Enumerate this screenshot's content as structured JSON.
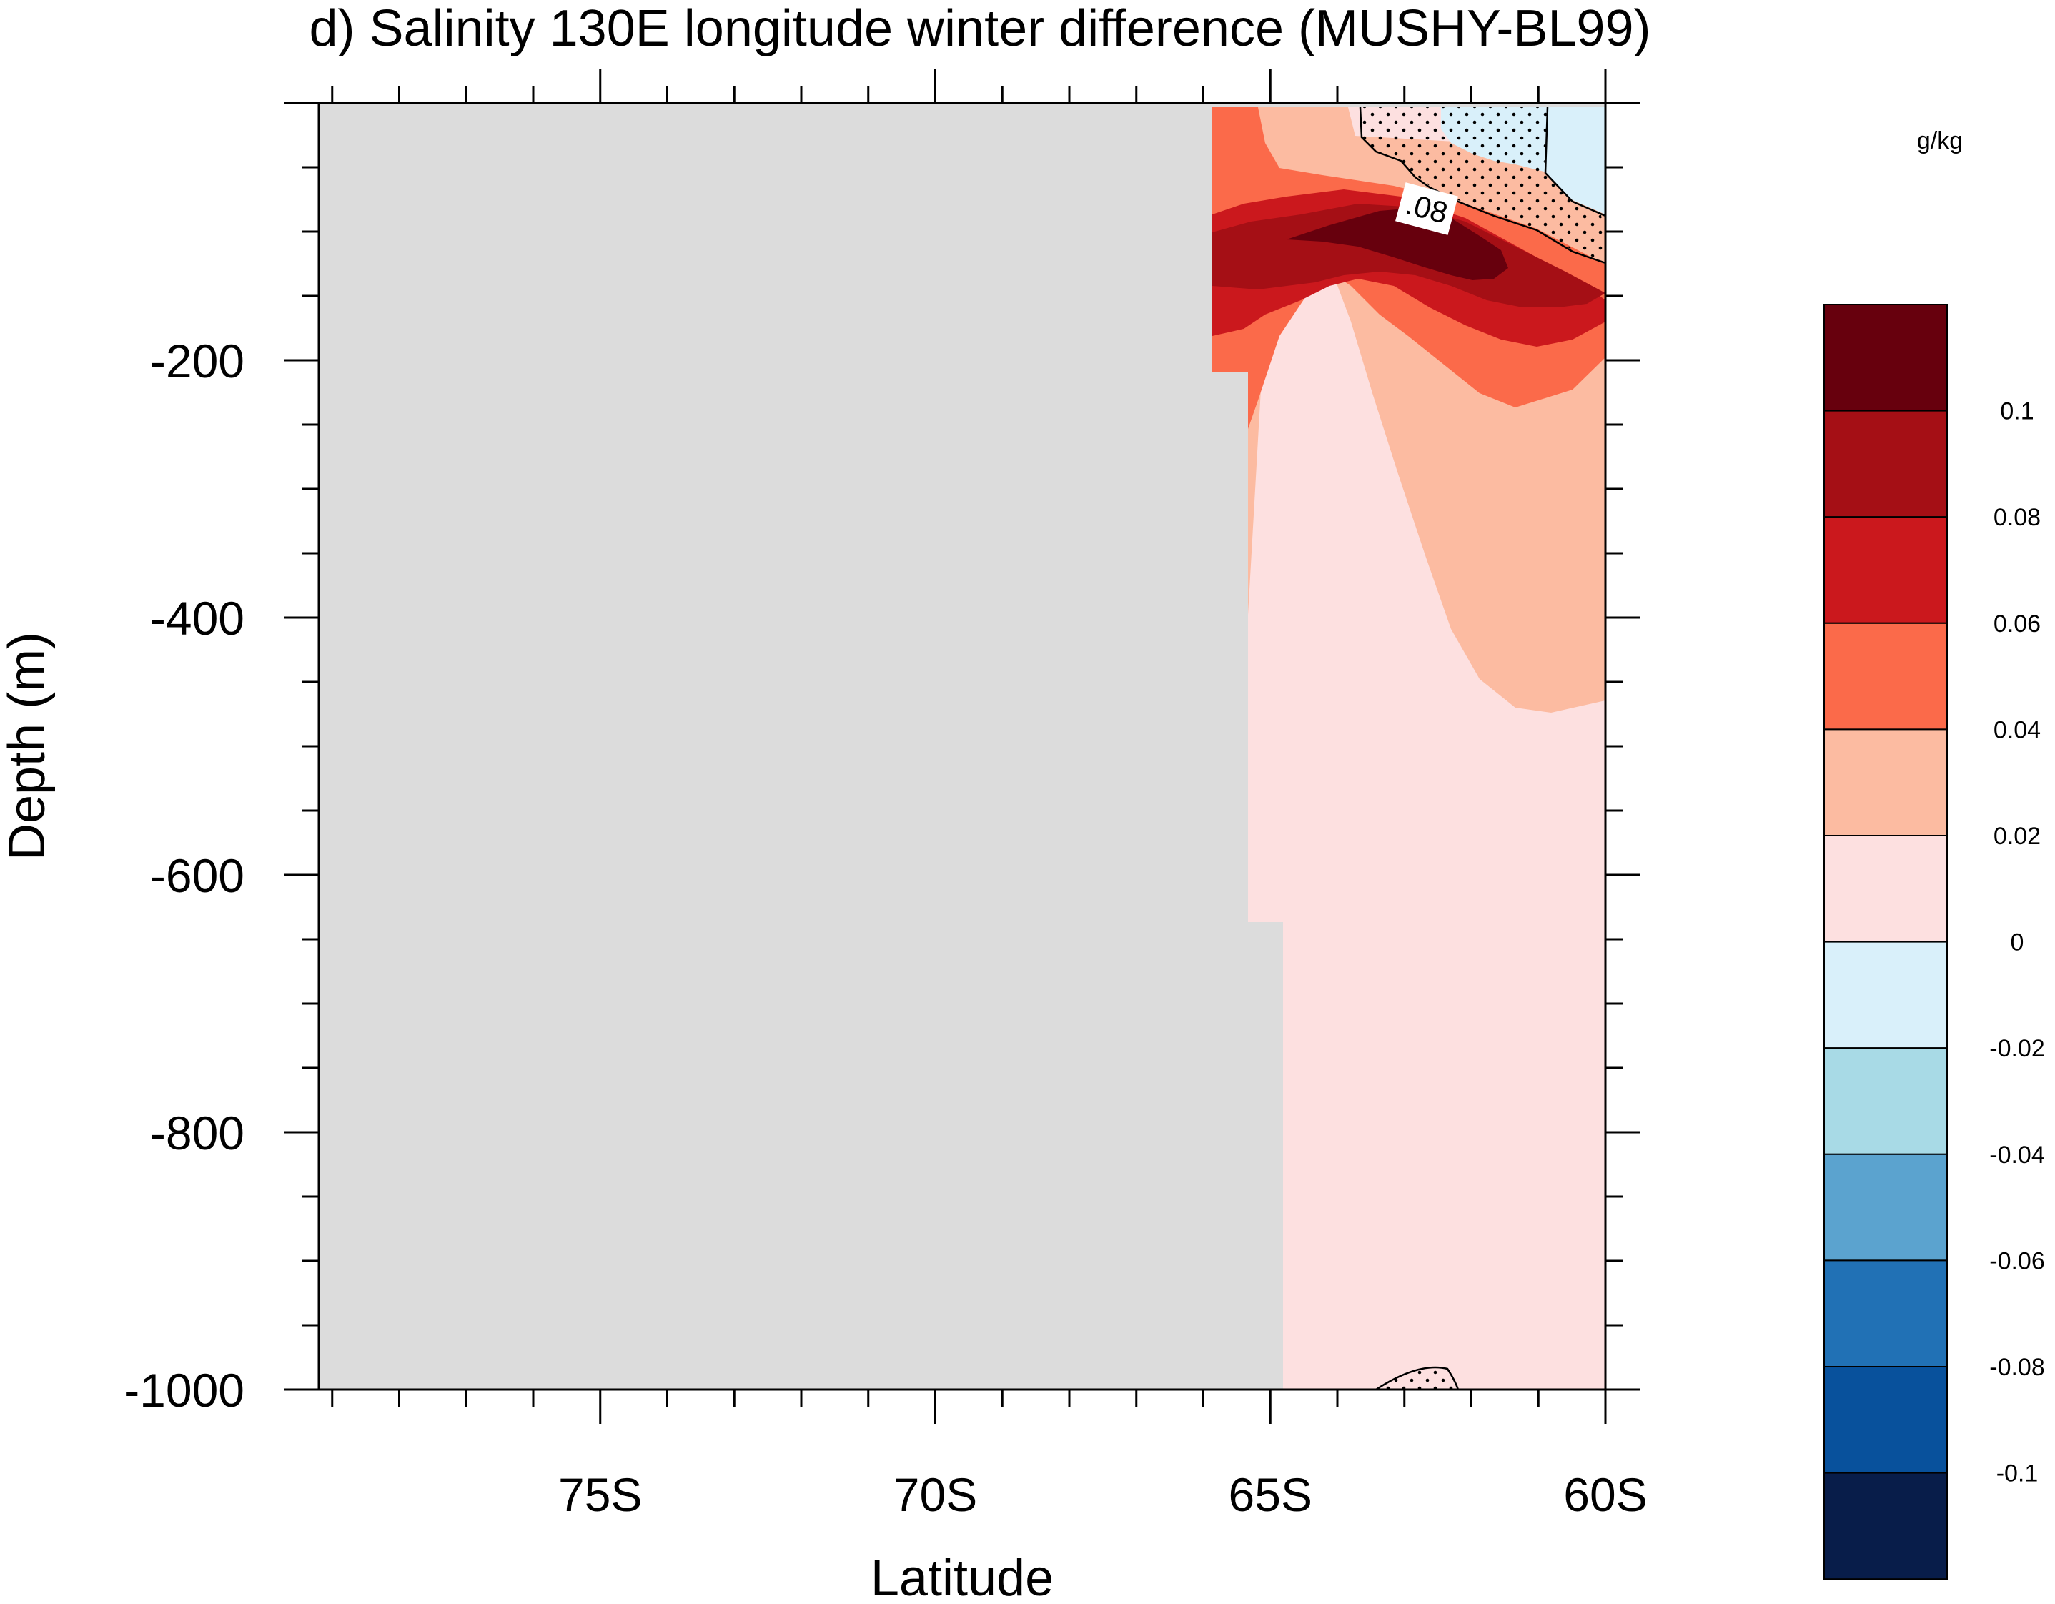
{
  "chart_data": {
    "type": "contour",
    "title": "d) Salinity 130E longitude winter difference (MUSHY-BL99)",
    "xlabel": "Latitude",
    "ylabel": "Depth (m)",
    "units": "g/kg",
    "x_axis": {
      "range_deg_south": [
        79.2,
        60
      ],
      "major_ticks": [
        75,
        70,
        65,
        60
      ],
      "tick_labels": [
        "75S",
        "70S",
        "65S",
        "60S"
      ]
    },
    "y_axis": {
      "range": [
        -1000,
        0
      ],
      "major_ticks": [
        -200,
        -400,
        -600,
        -800,
        -1000
      ],
      "tick_labels": [
        "-200",
        "-400",
        "-600",
        "-800",
        "-1000"
      ]
    },
    "contour_label": ".08",
    "stippling": "dots mark regions near the surface at 60-63S and a small patch near 62.5S, -1000 m",
    "colorbar": {
      "levels": [
        0.1,
        0.08,
        0.06,
        0.04,
        0.02,
        0,
        -0.02,
        -0.04,
        -0.06,
        -0.08,
        -0.1
      ],
      "labels": [
        "0.1",
        "0.08",
        "0.06",
        "0.04",
        "0.02",
        "0",
        "-0.02",
        "-0.04",
        "-0.06",
        "-0.08",
        "-0.1"
      ],
      "colors": [
        "#67000d",
        "#a50f15",
        "#cb181d",
        "#fb6a4a",
        "#fcbba1",
        "#fde0e0",
        "#d9f0fa",
        "#a8dae6",
        "#5ba3cf",
        "#2171b5",
        "#08519c",
        "#081d4a"
      ]
    },
    "missing_color": "#dcdcdc",
    "regions": [
      {
        "band": "0 to 0.02",
        "color": "#fde0e0",
        "description": "bulk of ocean north of 65S below 200 m"
      },
      {
        "band": "0.02 to 0.04",
        "color": "#fcbba1",
        "description": "upper 450 m, 59.5-65S"
      },
      {
        "band": "0.04 to 0.06",
        "color": "#fb6a4a",
        "description": "upper 250 m, 60-66S"
      },
      {
        "band": "0.06 to 0.08",
        "color": "#cb181d",
        "description": "subsurface core 80-190 m"
      },
      {
        "band": "0.08 to 0.1",
        "color": "#a50f15",
        "description": "subsurface core 90-170 m"
      },
      {
        "band": "> 0.1",
        "color": "#67000d",
        "description": "core near 63.5S, ~100-130 m"
      },
      {
        "band": "-0.02 to 0",
        "color": "#d9f0fa",
        "description": "surface layer 60-62.5S"
      }
    ]
  }
}
